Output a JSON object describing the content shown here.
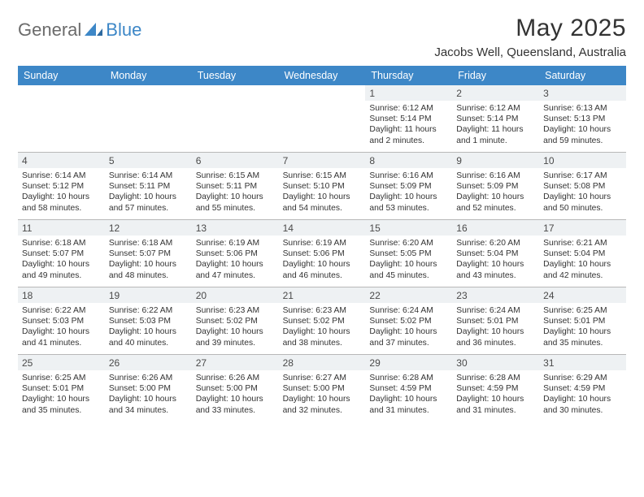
{
  "logo": {
    "text_a": "General",
    "text_b": "Blue"
  },
  "title": "May 2025",
  "subtitle": "Jacobs Well, Queensland, Australia",
  "day_headers": [
    "Sunday",
    "Monday",
    "Tuesday",
    "Wednesday",
    "Thursday",
    "Friday",
    "Saturday"
  ],
  "colors": {
    "header_band": "#3d87c7",
    "header_text": "#ffffff",
    "daynum_bg": "#eef1f3",
    "body_text": "#333333",
    "rule": "#b8b8b8",
    "logo_grey": "#6b6b6b",
    "logo_blue": "#3d87c7"
  },
  "type": "calendar",
  "weeks": [
    [
      {
        "n": "",
        "sunrise": "",
        "sunset": "",
        "daylight": ""
      },
      {
        "n": "",
        "sunrise": "",
        "sunset": "",
        "daylight": ""
      },
      {
        "n": "",
        "sunrise": "",
        "sunset": "",
        "daylight": ""
      },
      {
        "n": "",
        "sunrise": "",
        "sunset": "",
        "daylight": ""
      },
      {
        "n": "1",
        "sunrise": "Sunrise: 6:12 AM",
        "sunset": "Sunset: 5:14 PM",
        "daylight": "Daylight: 11 hours and 2 minutes."
      },
      {
        "n": "2",
        "sunrise": "Sunrise: 6:12 AM",
        "sunset": "Sunset: 5:14 PM",
        "daylight": "Daylight: 11 hours and 1 minute."
      },
      {
        "n": "3",
        "sunrise": "Sunrise: 6:13 AM",
        "sunset": "Sunset: 5:13 PM",
        "daylight": "Daylight: 10 hours and 59 minutes."
      }
    ],
    [
      {
        "n": "4",
        "sunrise": "Sunrise: 6:14 AM",
        "sunset": "Sunset: 5:12 PM",
        "daylight": "Daylight: 10 hours and 58 minutes."
      },
      {
        "n": "5",
        "sunrise": "Sunrise: 6:14 AM",
        "sunset": "Sunset: 5:11 PM",
        "daylight": "Daylight: 10 hours and 57 minutes."
      },
      {
        "n": "6",
        "sunrise": "Sunrise: 6:15 AM",
        "sunset": "Sunset: 5:11 PM",
        "daylight": "Daylight: 10 hours and 55 minutes."
      },
      {
        "n": "7",
        "sunrise": "Sunrise: 6:15 AM",
        "sunset": "Sunset: 5:10 PM",
        "daylight": "Daylight: 10 hours and 54 minutes."
      },
      {
        "n": "8",
        "sunrise": "Sunrise: 6:16 AM",
        "sunset": "Sunset: 5:09 PM",
        "daylight": "Daylight: 10 hours and 53 minutes."
      },
      {
        "n": "9",
        "sunrise": "Sunrise: 6:16 AM",
        "sunset": "Sunset: 5:09 PM",
        "daylight": "Daylight: 10 hours and 52 minutes."
      },
      {
        "n": "10",
        "sunrise": "Sunrise: 6:17 AM",
        "sunset": "Sunset: 5:08 PM",
        "daylight": "Daylight: 10 hours and 50 minutes."
      }
    ],
    [
      {
        "n": "11",
        "sunrise": "Sunrise: 6:18 AM",
        "sunset": "Sunset: 5:07 PM",
        "daylight": "Daylight: 10 hours and 49 minutes."
      },
      {
        "n": "12",
        "sunrise": "Sunrise: 6:18 AM",
        "sunset": "Sunset: 5:07 PM",
        "daylight": "Daylight: 10 hours and 48 minutes."
      },
      {
        "n": "13",
        "sunrise": "Sunrise: 6:19 AM",
        "sunset": "Sunset: 5:06 PM",
        "daylight": "Daylight: 10 hours and 47 minutes."
      },
      {
        "n": "14",
        "sunrise": "Sunrise: 6:19 AM",
        "sunset": "Sunset: 5:06 PM",
        "daylight": "Daylight: 10 hours and 46 minutes."
      },
      {
        "n": "15",
        "sunrise": "Sunrise: 6:20 AM",
        "sunset": "Sunset: 5:05 PM",
        "daylight": "Daylight: 10 hours and 45 minutes."
      },
      {
        "n": "16",
        "sunrise": "Sunrise: 6:20 AM",
        "sunset": "Sunset: 5:04 PM",
        "daylight": "Daylight: 10 hours and 43 minutes."
      },
      {
        "n": "17",
        "sunrise": "Sunrise: 6:21 AM",
        "sunset": "Sunset: 5:04 PM",
        "daylight": "Daylight: 10 hours and 42 minutes."
      }
    ],
    [
      {
        "n": "18",
        "sunrise": "Sunrise: 6:22 AM",
        "sunset": "Sunset: 5:03 PM",
        "daylight": "Daylight: 10 hours and 41 minutes."
      },
      {
        "n": "19",
        "sunrise": "Sunrise: 6:22 AM",
        "sunset": "Sunset: 5:03 PM",
        "daylight": "Daylight: 10 hours and 40 minutes."
      },
      {
        "n": "20",
        "sunrise": "Sunrise: 6:23 AM",
        "sunset": "Sunset: 5:02 PM",
        "daylight": "Daylight: 10 hours and 39 minutes."
      },
      {
        "n": "21",
        "sunrise": "Sunrise: 6:23 AM",
        "sunset": "Sunset: 5:02 PM",
        "daylight": "Daylight: 10 hours and 38 minutes."
      },
      {
        "n": "22",
        "sunrise": "Sunrise: 6:24 AM",
        "sunset": "Sunset: 5:02 PM",
        "daylight": "Daylight: 10 hours and 37 minutes."
      },
      {
        "n": "23",
        "sunrise": "Sunrise: 6:24 AM",
        "sunset": "Sunset: 5:01 PM",
        "daylight": "Daylight: 10 hours and 36 minutes."
      },
      {
        "n": "24",
        "sunrise": "Sunrise: 6:25 AM",
        "sunset": "Sunset: 5:01 PM",
        "daylight": "Daylight: 10 hours and 35 minutes."
      }
    ],
    [
      {
        "n": "25",
        "sunrise": "Sunrise: 6:25 AM",
        "sunset": "Sunset: 5:01 PM",
        "daylight": "Daylight: 10 hours and 35 minutes."
      },
      {
        "n": "26",
        "sunrise": "Sunrise: 6:26 AM",
        "sunset": "Sunset: 5:00 PM",
        "daylight": "Daylight: 10 hours and 34 minutes."
      },
      {
        "n": "27",
        "sunrise": "Sunrise: 6:26 AM",
        "sunset": "Sunset: 5:00 PM",
        "daylight": "Daylight: 10 hours and 33 minutes."
      },
      {
        "n": "28",
        "sunrise": "Sunrise: 6:27 AM",
        "sunset": "Sunset: 5:00 PM",
        "daylight": "Daylight: 10 hours and 32 minutes."
      },
      {
        "n": "29",
        "sunrise": "Sunrise: 6:28 AM",
        "sunset": "Sunset: 4:59 PM",
        "daylight": "Daylight: 10 hours and 31 minutes."
      },
      {
        "n": "30",
        "sunrise": "Sunrise: 6:28 AM",
        "sunset": "Sunset: 4:59 PM",
        "daylight": "Daylight: 10 hours and 31 minutes."
      },
      {
        "n": "31",
        "sunrise": "Sunrise: 6:29 AM",
        "sunset": "Sunset: 4:59 PM",
        "daylight": "Daylight: 10 hours and 30 minutes."
      }
    ]
  ]
}
